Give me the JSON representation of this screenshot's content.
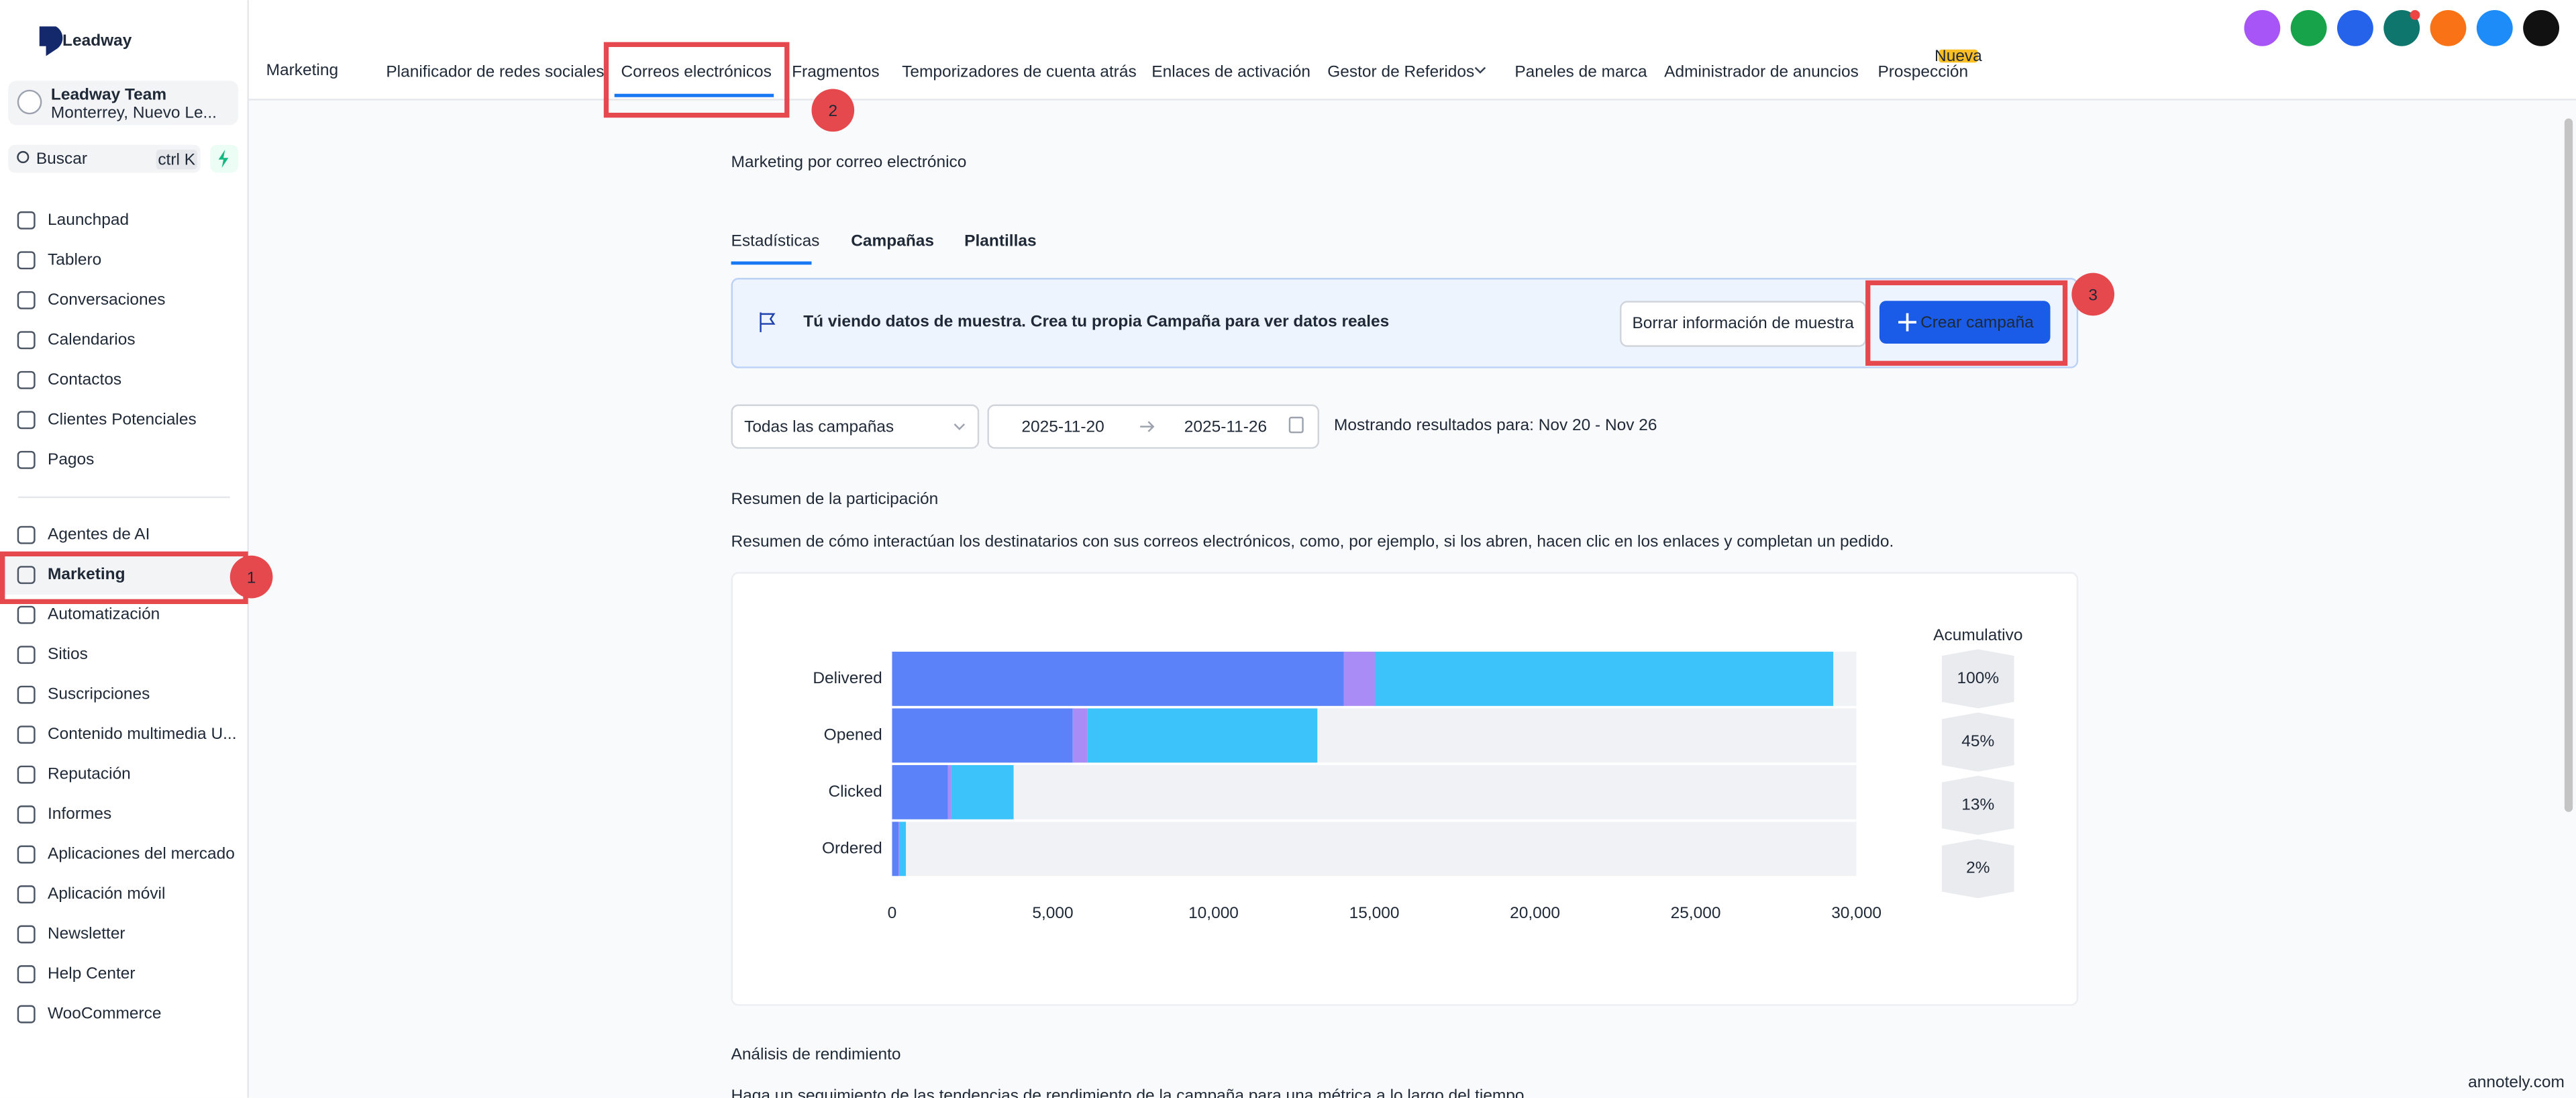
{
  "sidebar": {
    "brand": "Leadway",
    "account": {
      "name": "Leadway Team",
      "location": "Monterrey, Nuevo Le..."
    },
    "search": {
      "placeholder": "Buscar",
      "shortcut": "ctrl K"
    },
    "menu_top": [
      "Launchpad",
      "Tablero",
      "Conversaciones",
      "Calendarios",
      "Contactos",
      "Clientes Potenciales",
      "Pagos"
    ],
    "menu_bottom": [
      "Agentes de AI",
      "Marketing",
      "Automatización",
      "Sitios",
      "Suscripciones",
      "Contenido multimedia U...",
      "Reputación",
      "Informes",
      "Aplicaciones del mercado",
      "Aplicación móvil",
      "Newsletter",
      "Help Center",
      "WooCommerce"
    ]
  },
  "topnav": {
    "section": "Marketing",
    "tabs": [
      "Planificador de redes sociales",
      "Correos electrónicos",
      "Fragmentos",
      "Temporizadores de cuenta atrás",
      "Enlaces de activación",
      "Gestor de Referidos",
      "Paneles de marca",
      "Administrador de anuncios",
      "Prospección"
    ],
    "badge": "Nueva"
  },
  "page": {
    "title": "Marketing por correo electrónico",
    "tabs": [
      "Estadísticas",
      "Campañas",
      "Plantillas"
    ],
    "banner": {
      "message": "Tú viendo datos de muestra. Crea tu propia Campaña para ver datos reales",
      "clear_button": "Borrar información de muestra",
      "create_button": "Crear campaña"
    },
    "filters": {
      "campaign": "Todas las campañas",
      "start_date": "2025-11-20",
      "end_date": "2025-11-26",
      "results": "Mostrando resultados para: Nov 20 - Nov 26"
    },
    "engagement": {
      "heading": "Resumen de la participación",
      "description": "Resumen de cómo interactúan los destinatarios con sus correos electrónicos, como, por ejemplo, si los abren, hacen clic en los enlaces y completan un pedido."
    },
    "performance": {
      "heading": "Análisis de rendimiento",
      "description": "Haga un seguimiento de las tendencias de rendimiento de la campaña para una métrica a lo largo del tiempo."
    }
  },
  "annotations": [
    "1",
    "2",
    "3"
  ],
  "watermark": "annotely.com",
  "chart_data": {
    "type": "stacked-barh",
    "categories": [
      "Delivered",
      "Opened",
      "Clicked",
      "Ordered"
    ],
    "series": [
      {
        "color": "#5b82f8",
        "values": [
          14050,
          5620,
          1740,
          200
        ]
      },
      {
        "color": "#a98cf6",
        "values": [
          970,
          460,
          100,
          30
        ]
      },
      {
        "color": "#3cc3fa",
        "values": [
          14260,
          7150,
          1940,
          200
        ]
      }
    ],
    "xlim": [
      0,
      30000
    ],
    "xticks": [
      0,
      {
        "value": 5000,
        "label": "5,000"
      },
      {
        "value": 10000,
        "label": "10,000"
      },
      {
        "value": 15000,
        "label": "15,000"
      },
      {
        "value": 20000,
        "label": "20,000"
      },
      {
        "value": 25000,
        "label": "25,000"
      },
      {
        "value": 30000,
        "label": "30,000"
      }
    ],
    "cumulative": {
      "title": "Acumulativo",
      "values": [
        100,
        45,
        13,
        2
      ],
      "value_labels": [
        "100%",
        "45%",
        "13%",
        "2%"
      ]
    }
  }
}
